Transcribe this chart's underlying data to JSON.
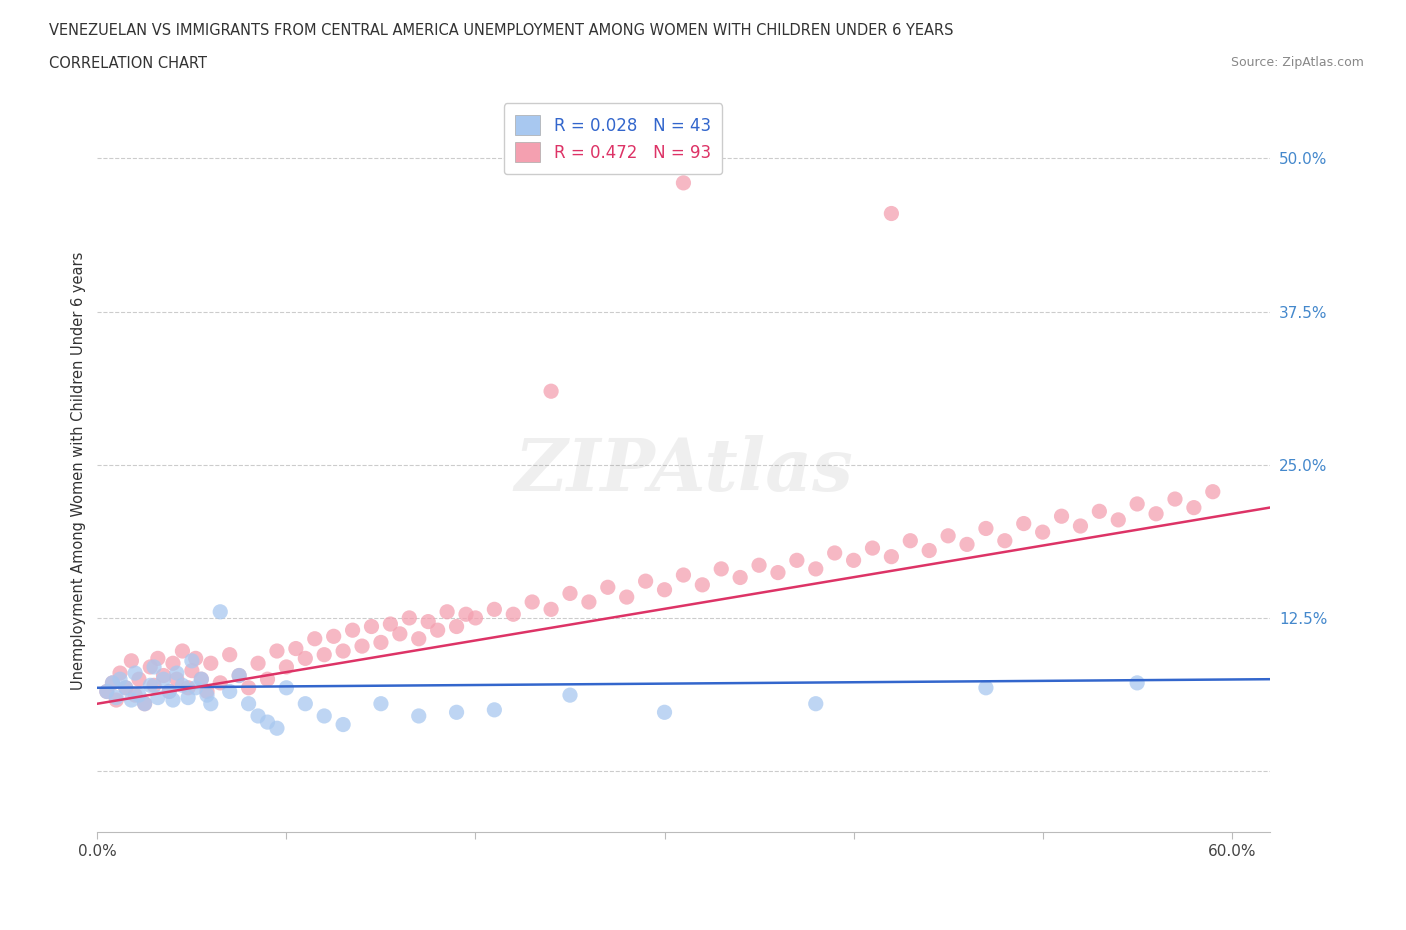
{
  "title_line1": "VENEZUELAN VS IMMIGRANTS FROM CENTRAL AMERICA UNEMPLOYMENT AMONG WOMEN WITH CHILDREN UNDER 6 YEARS",
  "title_line2": "CORRELATION CHART",
  "source": "Source: ZipAtlas.com",
  "ylabel": "Unemployment Among Women with Children Under 6 years",
  "xlim": [
    0.0,
    0.62
  ],
  "ylim": [
    -0.05,
    0.54
  ],
  "yticks": [
    0.0,
    0.125,
    0.25,
    0.375,
    0.5
  ],
  "ytick_labels": [
    "",
    "12.5%",
    "25.0%",
    "37.5%",
    "50.0%"
  ],
  "xticks": [
    0.0,
    0.1,
    0.2,
    0.3,
    0.4,
    0.5,
    0.6
  ],
  "xtick_labels": [
    "0.0%",
    "",
    "",
    "",
    "",
    "",
    "60.0%"
  ],
  "grid_color": "#cccccc",
  "background_color": "#ffffff",
  "venezuelan_color": "#a8c8f0",
  "central_america_color": "#f4a0b0",
  "venezuelan_line_color": "#3366cc",
  "central_america_line_color": "#dd3366",
  "R_venezuelan": 0.028,
  "N_venezuelan": 43,
  "R_central_america": 0.472,
  "N_central_america": 93,
  "ven_trend_x": [
    0.0,
    0.62
  ],
  "ven_trend_y": [
    0.068,
    0.075
  ],
  "ca_trend_x": [
    0.0,
    0.62
  ],
  "ca_trend_y": [
    0.055,
    0.215
  ],
  "venezuelan_x": [
    0.005,
    0.008,
    0.01,
    0.012,
    0.015,
    0.018,
    0.02,
    0.022,
    0.025,
    0.028,
    0.03,
    0.032,
    0.035,
    0.038,
    0.04,
    0.042,
    0.045,
    0.048,
    0.05,
    0.052,
    0.055,
    0.058,
    0.06,
    0.065,
    0.07,
    0.075,
    0.08,
    0.085,
    0.09,
    0.095,
    0.1,
    0.11,
    0.12,
    0.13,
    0.15,
    0.17,
    0.19,
    0.21,
    0.25,
    0.3,
    0.38,
    0.47,
    0.55
  ],
  "venezuelan_y": [
    0.065,
    0.072,
    0.06,
    0.075,
    0.068,
    0.058,
    0.08,
    0.062,
    0.055,
    0.07,
    0.085,
    0.06,
    0.075,
    0.065,
    0.058,
    0.08,
    0.07,
    0.06,
    0.09,
    0.068,
    0.075,
    0.062,
    0.055,
    0.13,
    0.065,
    0.078,
    0.055,
    0.045,
    0.04,
    0.035,
    0.068,
    0.055,
    0.045,
    0.038,
    0.055,
    0.045,
    0.048,
    0.05,
    0.062,
    0.048,
    0.055,
    0.068,
    0.072
  ],
  "central_america_x": [
    0.005,
    0.008,
    0.01,
    0.012,
    0.015,
    0.018,
    0.02,
    0.022,
    0.025,
    0.028,
    0.03,
    0.032,
    0.035,
    0.038,
    0.04,
    0.042,
    0.045,
    0.048,
    0.05,
    0.052,
    0.055,
    0.058,
    0.06,
    0.065,
    0.07,
    0.075,
    0.08,
    0.085,
    0.09,
    0.095,
    0.1,
    0.105,
    0.11,
    0.115,
    0.12,
    0.125,
    0.13,
    0.135,
    0.14,
    0.145,
    0.15,
    0.155,
    0.16,
    0.165,
    0.17,
    0.175,
    0.18,
    0.185,
    0.19,
    0.195,
    0.2,
    0.21,
    0.22,
    0.23,
    0.24,
    0.25,
    0.26,
    0.27,
    0.28,
    0.29,
    0.3,
    0.31,
    0.32,
    0.33,
    0.34,
    0.35,
    0.36,
    0.37,
    0.38,
    0.39,
    0.4,
    0.41,
    0.42,
    0.43,
    0.44,
    0.45,
    0.46,
    0.47,
    0.48,
    0.49,
    0.5,
    0.51,
    0.52,
    0.53,
    0.54,
    0.55,
    0.56,
    0.57,
    0.58,
    0.59,
    0.24,
    0.31,
    0.42
  ],
  "central_america_y": [
    0.065,
    0.072,
    0.058,
    0.08,
    0.068,
    0.09,
    0.062,
    0.075,
    0.055,
    0.085,
    0.07,
    0.092,
    0.078,
    0.065,
    0.088,
    0.075,
    0.098,
    0.068,
    0.082,
    0.092,
    0.075,
    0.065,
    0.088,
    0.072,
    0.095,
    0.078,
    0.068,
    0.088,
    0.075,
    0.098,
    0.085,
    0.1,
    0.092,
    0.108,
    0.095,
    0.11,
    0.098,
    0.115,
    0.102,
    0.118,
    0.105,
    0.12,
    0.112,
    0.125,
    0.108,
    0.122,
    0.115,
    0.13,
    0.118,
    0.128,
    0.125,
    0.132,
    0.128,
    0.138,
    0.132,
    0.145,
    0.138,
    0.15,
    0.142,
    0.155,
    0.148,
    0.16,
    0.152,
    0.165,
    0.158,
    0.168,
    0.162,
    0.172,
    0.165,
    0.178,
    0.172,
    0.182,
    0.175,
    0.188,
    0.18,
    0.192,
    0.185,
    0.198,
    0.188,
    0.202,
    0.195,
    0.208,
    0.2,
    0.212,
    0.205,
    0.218,
    0.21,
    0.222,
    0.215,
    0.228,
    0.31,
    0.48,
    0.455
  ]
}
